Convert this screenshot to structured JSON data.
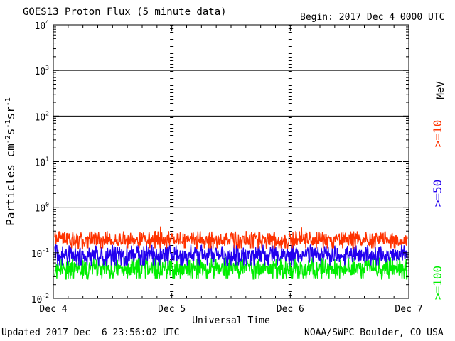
{
  "header": {
    "title": "GOES13 Proton Flux (5 minute data)",
    "begin": "Begin: 2017 Dec 4 0000 UTC"
  },
  "footer": {
    "updated": "Updated 2017 Dec  6 23:56:02 UTC",
    "credit": "NOAA/SWPC Boulder, CO USA"
  },
  "chart_data": {
    "type": "line",
    "title": "GOES13 Proton Flux (5 minute data)",
    "xlabel": "Universal Time",
    "ylabel": "Particles cm-2 s-1 sr-1",
    "yscale": "log",
    "ylim": [
      0.01,
      10000
    ],
    "y_ticks": [
      {
        "base": "10",
        "exp": "-2"
      },
      {
        "base": "10",
        "exp": "-1"
      },
      {
        "base": "10",
        "exp": "0"
      },
      {
        "base": "10",
        "exp": "1"
      },
      {
        "base": "10",
        "exp": "2"
      },
      {
        "base": "10",
        "exp": "3"
      },
      {
        "base": "10",
        "exp": "4"
      }
    ],
    "x_ticks": [
      "Dec 4",
      "Dec 5",
      "Dec 6",
      "Dec 7"
    ],
    "xlim": [
      "2017-12-04 00:00 UTC",
      "2017-12-07 00:00 UTC"
    ],
    "threshold_lines": [
      {
        "value": 10,
        "style": "dashed"
      },
      {
        "value": 1,
        "style": "solid"
      },
      {
        "value": 100,
        "style": "solid"
      },
      {
        "value": 1000,
        "style": "solid"
      }
    ],
    "unit_label": "MeV",
    "series": [
      {
        "name": ">=10",
        "color": "#ff3300",
        "typical_range": [
          0.12,
          0.3
        ],
        "peaks": [
          0.38,
          0.36
        ]
      },
      {
        "name": ">=50",
        "color": "#2200ee",
        "typical_range": [
          0.05,
          0.15
        ],
        "peaks": [
          0.18
        ]
      },
      {
        "name": ">=100",
        "color": "#00ee00",
        "typical_range": [
          0.025,
          0.08
        ],
        "peaks": [
          0.09
        ]
      }
    ]
  }
}
